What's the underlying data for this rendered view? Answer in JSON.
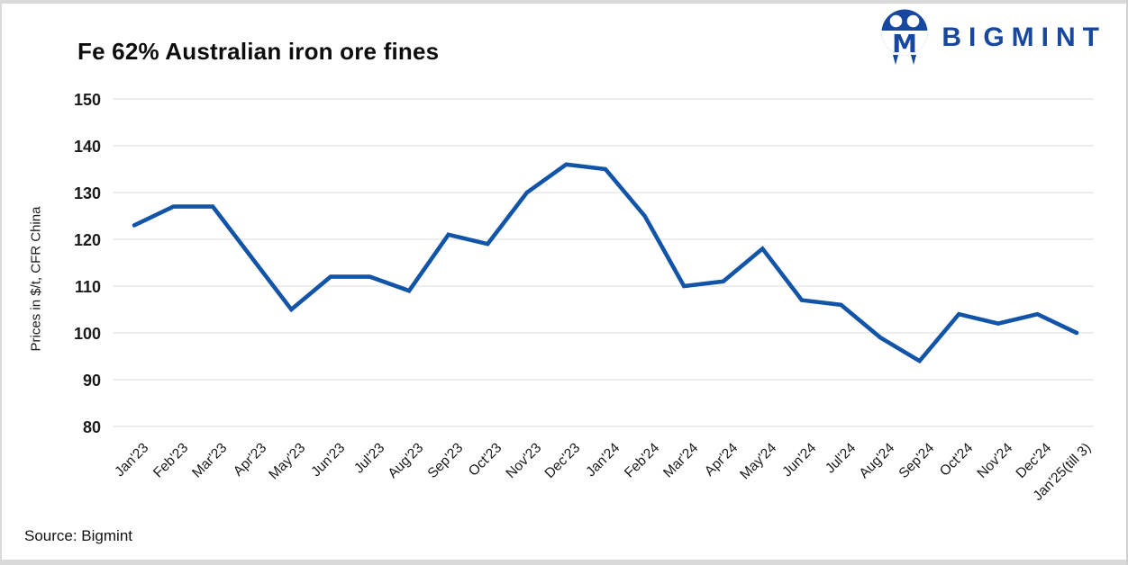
{
  "title": "Fe 62% Australian iron ore fines",
  "logo": {
    "text": "BIGMINT",
    "color": "#17479e"
  },
  "source": "Source: Bigmint",
  "chart_data": {
    "type": "line",
    "title": "Fe 62% Australian iron ore fines",
    "xlabel": "",
    "ylabel": "Prices in $/t, CFR China",
    "ylim": [
      80,
      150
    ],
    "ytick_step": 10,
    "yticks": [
      80,
      90,
      100,
      110,
      120,
      130,
      140,
      150
    ],
    "grid": true,
    "legend": "none",
    "line_color": "#1254a8",
    "grid_color": "#ececec",
    "categories": [
      "Jan'23",
      "Feb'23",
      "Mar'23",
      "Apr'23",
      "May'23",
      "Jun'23",
      "Jul'23",
      "Aug'23",
      "Sep'23",
      "Oct'23",
      "Nov'23",
      "Dec'23",
      "Jan'24",
      "Feb'24",
      "Mar'24",
      "Apr'24",
      "May'24",
      "Jun'24",
      "Jul'24",
      "Aug'24",
      "Sep'24",
      "Oct'24",
      "Nov'24",
      "Dec'24",
      "Jan'25(till 3)"
    ],
    "values": [
      123,
      127,
      127,
      116,
      105,
      112,
      112,
      109,
      121,
      119,
      130,
      136,
      135,
      125,
      110,
      111,
      118,
      107,
      106,
      99,
      94,
      104,
      102,
      104,
      100
    ]
  }
}
